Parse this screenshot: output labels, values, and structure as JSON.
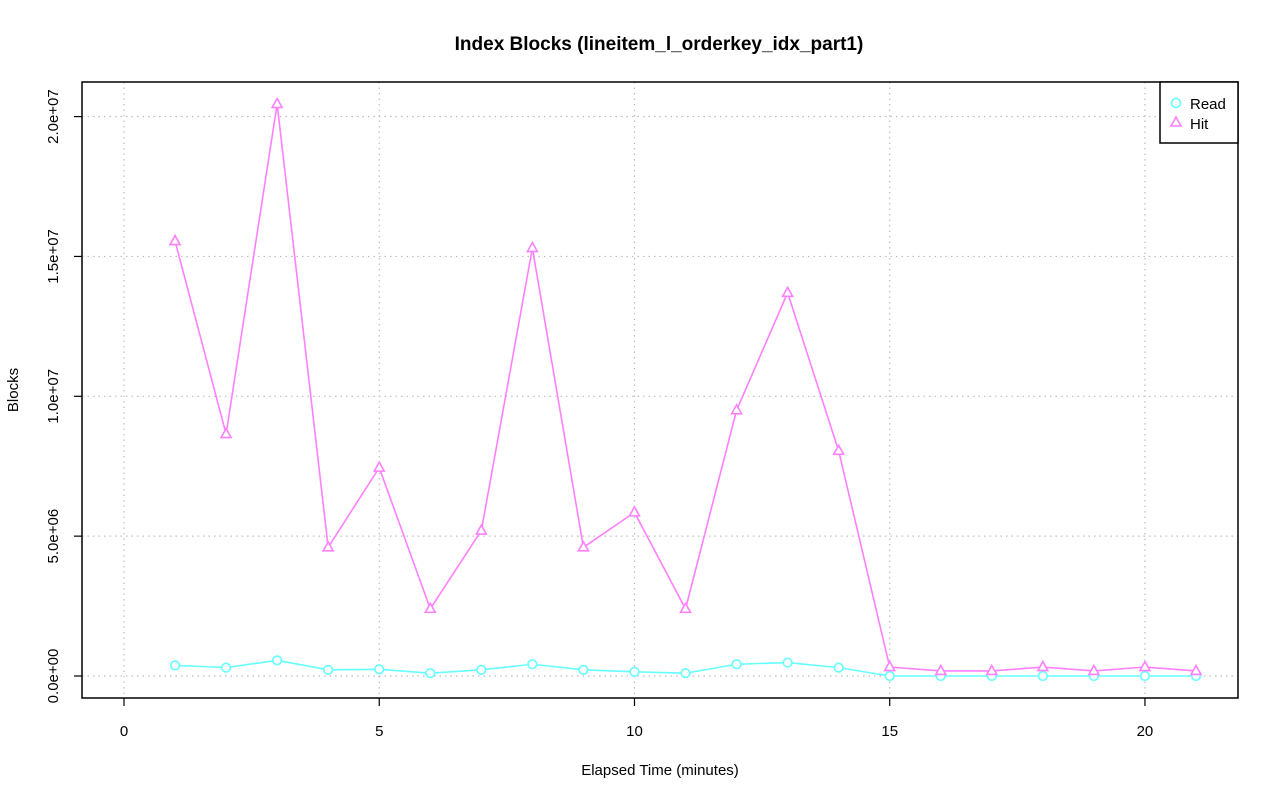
{
  "chart_data": {
    "type": "line",
    "title": "Index Blocks (lineitem_l_orderkey_idx_part1)",
    "xlabel": "Elapsed Time (minutes)",
    "ylabel": "Blocks",
    "xlim": [
      0,
      21
    ],
    "ylim": [
      0,
      20450000
    ],
    "x_ticks": [
      0,
      5,
      10,
      15,
      20
    ],
    "x_tick_labels": [
      "0",
      "5",
      "10",
      "15",
      "20"
    ],
    "y_ticks": [
      0,
      5000000,
      10000000,
      15000000,
      20000000
    ],
    "y_tick_labels": [
      "0.0e+00",
      "5.0e+06",
      "1.0e+07",
      "1.5e+07",
      "2.0e+07"
    ],
    "grid": true,
    "legend_position": "top-right",
    "x": [
      1,
      2,
      3,
      4,
      5,
      6,
      7,
      8,
      9,
      10,
      11,
      12,
      13,
      14,
      15,
      16,
      17,
      18,
      19,
      20,
      21
    ],
    "series": [
      {
        "name": "Read",
        "color": "#66ffff",
        "marker": "circle",
        "values": [
          380000,
          300000,
          560000,
          220000,
          240000,
          100000,
          220000,
          420000,
          220000,
          150000,
          100000,
          420000,
          480000,
          300000,
          0,
          0,
          0,
          0,
          0,
          0,
          0
        ]
      },
      {
        "name": "Hit",
        "color": "#ff80ff",
        "marker": "triangle",
        "values": [
          15550000,
          8650000,
          20450000,
          4600000,
          7450000,
          2400000,
          5200000,
          15300000,
          4600000,
          5850000,
          2400000,
          9500000,
          13700000,
          8050000,
          320000,
          180000,
          180000,
          320000,
          180000,
          320000,
          180000
        ]
      }
    ]
  }
}
